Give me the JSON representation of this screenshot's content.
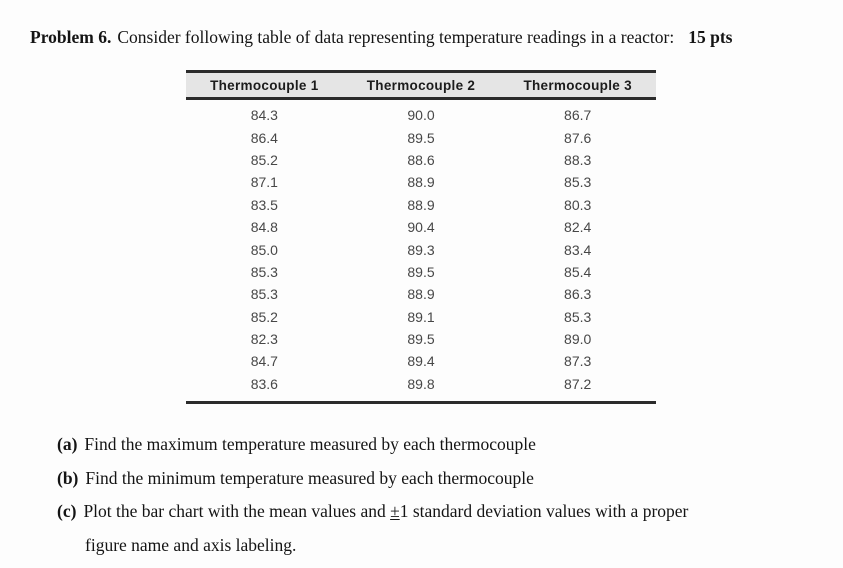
{
  "header": {
    "problem_label": "Problem 6.",
    "problem_text": "Consider following table of data representing temperature readings in a reactor:",
    "points": "15 pts"
  },
  "table": {
    "headers": [
      "Thermocouple 1",
      "Thermocouple 2",
      "Thermocouple 3"
    ],
    "rows": [
      [
        "84.3",
        "90.0",
        "86.7"
      ],
      [
        "86.4",
        "89.5",
        "87.6"
      ],
      [
        "85.2",
        "88.6",
        "88.3"
      ],
      [
        "87.1",
        "88.9",
        "85.3"
      ],
      [
        "83.5",
        "88.9",
        "80.3"
      ],
      [
        "84.8",
        "90.4",
        "82.4"
      ],
      [
        "85.0",
        "89.3",
        "83.4"
      ],
      [
        "85.3",
        "89.5",
        "85.4"
      ],
      [
        "85.3",
        "88.9",
        "86.3"
      ],
      [
        "85.2",
        "89.1",
        "85.3"
      ],
      [
        "82.3",
        "89.5",
        "89.0"
      ],
      [
        "84.7",
        "89.4",
        "87.3"
      ],
      [
        "83.6",
        "89.8",
        "87.2"
      ]
    ]
  },
  "questions": {
    "a_label": "(a)",
    "a_text": "Find the maximum temperature measured by each thermocouple",
    "b_label": "(b)",
    "b_text": "Find the minimum temperature measured by each thermocouple",
    "c_label": "(c)",
    "c_text_before": "Plot the bar chart with the mean values and ",
    "c_pm": "±",
    "c_text_after": "1 standard deviation values with a proper",
    "c_line2": "figure name and axis labeling."
  }
}
